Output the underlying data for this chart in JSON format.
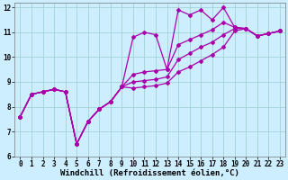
{
  "bg_color": "#cceeff",
  "line_color": "#aa00aa",
  "grid_color": "#99cccc",
  "xlabel": "Windchill (Refroidissement éolien,°C)",
  "xlim": [
    -0.5,
    23.5
  ],
  "ylim": [
    6,
    12.2
  ],
  "yticks": [
    6,
    7,
    8,
    9,
    10,
    11,
    12
  ],
  "xticks": [
    0,
    1,
    2,
    3,
    4,
    5,
    6,
    7,
    8,
    9,
    10,
    11,
    12,
    13,
    14,
    15,
    16,
    17,
    18,
    19,
    20,
    21,
    22,
    23
  ],
  "lines": [
    {
      "x": [
        0,
        1,
        2,
        3,
        4,
        5,
        6,
        7,
        8,
        9,
        10,
        11,
        12,
        13,
        14,
        15,
        16,
        17,
        18,
        19,
        20,
        21,
        22,
        23
      ],
      "y": [
        7.6,
        8.5,
        8.6,
        8.7,
        8.6,
        6.5,
        7.4,
        7.9,
        8.2,
        8.8,
        10.8,
        11.0,
        10.9,
        9.5,
        11.9,
        11.7,
        11.9,
        11.5,
        12.0,
        11.2,
        11.15,
        10.85,
        10.95,
        11.05
      ]
    },
    {
      "x": [
        0,
        1,
        2,
        3,
        4,
        5,
        6,
        7,
        8,
        9,
        10,
        11,
        12,
        13,
        14,
        15,
        16,
        17,
        18,
        19,
        20,
        21,
        22,
        23
      ],
      "y": [
        7.6,
        8.5,
        8.6,
        8.7,
        8.6,
        6.5,
        7.4,
        7.9,
        8.2,
        8.8,
        9.3,
        9.4,
        9.45,
        9.5,
        10.5,
        10.7,
        10.9,
        11.1,
        11.4,
        11.2,
        11.15,
        10.85,
        10.95,
        11.05
      ]
    },
    {
      "x": [
        0,
        1,
        2,
        3,
        4,
        5,
        6,
        7,
        8,
        9,
        10,
        11,
        12,
        13,
        14,
        15,
        16,
        17,
        18,
        19,
        20,
        21,
        22,
        23
      ],
      "y": [
        7.6,
        8.5,
        8.6,
        8.7,
        8.6,
        6.5,
        7.4,
        7.9,
        8.2,
        8.8,
        9.0,
        9.05,
        9.1,
        9.2,
        9.9,
        10.15,
        10.4,
        10.6,
        10.9,
        11.15,
        11.15,
        10.85,
        10.95,
        11.05
      ]
    },
    {
      "x": [
        0,
        1,
        2,
        3,
        4,
        5,
        6,
        7,
        8,
        9,
        10,
        11,
        12,
        13,
        14,
        15,
        16,
        17,
        18,
        19,
        20,
        21,
        22,
        23
      ],
      "y": [
        7.6,
        8.5,
        8.6,
        8.7,
        8.6,
        6.5,
        7.4,
        7.9,
        8.2,
        8.8,
        8.75,
        8.8,
        8.85,
        8.95,
        9.4,
        9.6,
        9.85,
        10.1,
        10.4,
        11.05,
        11.15,
        10.85,
        10.95,
        11.05
      ]
    }
  ],
  "marker": "D",
  "marker_size": 2.0,
  "linewidth": 0.9,
  "tick_label_size": 5.5,
  "xlabel_size": 6.5,
  "font_family": "monospace"
}
